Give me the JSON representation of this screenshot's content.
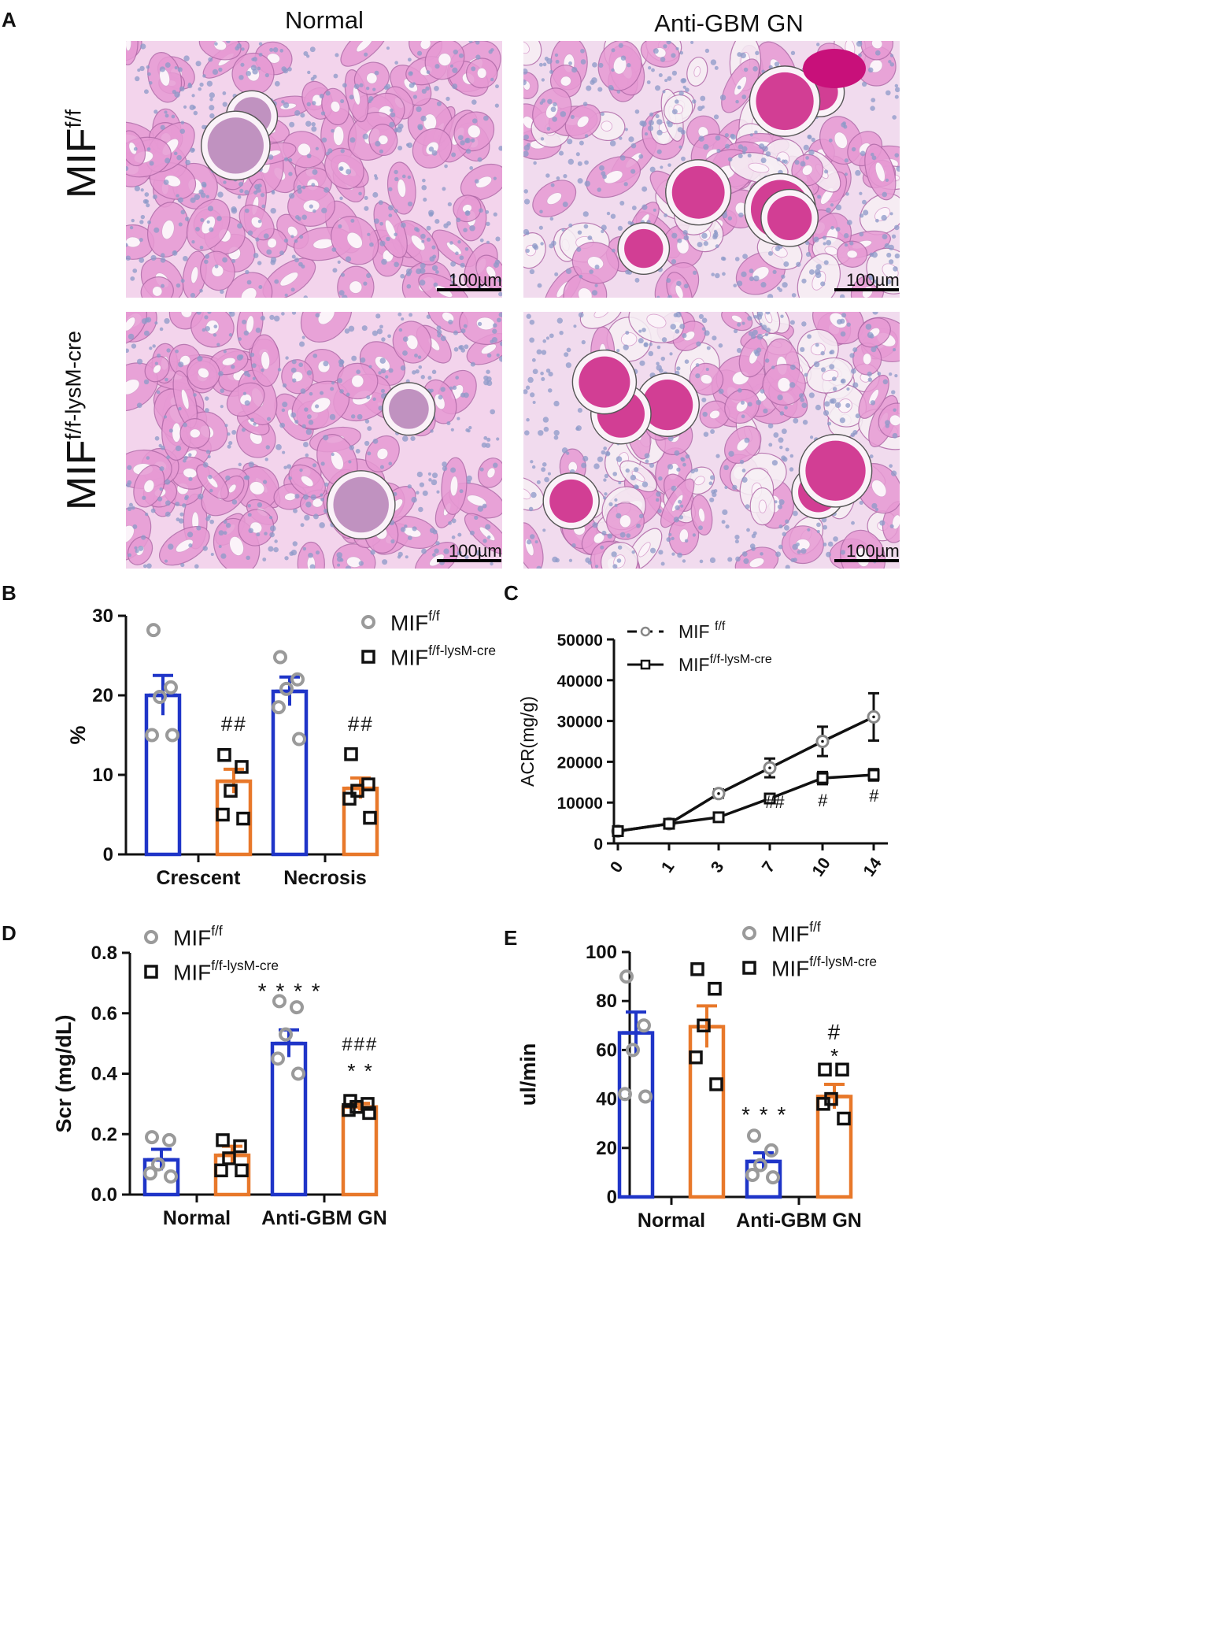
{
  "panels": {
    "A": {
      "letter": "A",
      "columns": [
        "Normal",
        "Anti-GBM GN"
      ],
      "rows": [
        {
          "base": "MIF",
          "sup": "f/f"
        },
        {
          "base": "MIF",
          "sup": "f/f-lysM-cre"
        }
      ],
      "scale_label": "100µm"
    },
    "B": {
      "letter": "B"
    },
    "C": {
      "letter": "C"
    },
    "D": {
      "letter": "D"
    },
    "E": {
      "letter": "E"
    }
  },
  "colors": {
    "ff_bar": "#1f35c8",
    "cre_bar": "#e8782a",
    "ff_marker": "#9a9a9a",
    "cre_marker": "#111111",
    "stain_bg": "#f3d4ec",
    "stain_pink": "#e79ad4",
    "stain_magenta": "#c8107a",
    "stain_nucleus": "#8c9ac8"
  },
  "chart_data": [
    {
      "id": "B",
      "type": "bar",
      "ylabel": "%",
      "ylim": [
        0,
        30
      ],
      "yticks": [
        "0",
        "10",
        "20",
        "30"
      ],
      "categories": [
        "Crescent",
        "Necrosis"
      ],
      "legend": [
        {
          "base": "MIF",
          "sup": "f/f",
          "marker": "circle"
        },
        {
          "base": "MIF",
          "sup": "f/f-lysM-cre",
          "marker": "square"
        }
      ],
      "series": [
        {
          "name": "MIF f/f",
          "values": [
            20.0,
            20.5
          ],
          "errors": [
            2.5,
            1.8
          ],
          "points": [
            [
              28.2,
              21.0,
              19.8,
              15.0,
              15.0
            ],
            [
              24.8,
              22.0,
              20.8,
              18.5,
              14.5
            ]
          ]
        },
        {
          "name": "MIF f/f-lysM-cre",
          "values": [
            9.2,
            8.3
          ],
          "errors": [
            1.5,
            1.3
          ],
          "points": [
            [
              12.5,
              11.0,
              8.0,
              5.0,
              4.5
            ],
            [
              12.6,
              8.8,
              8.0,
              7.0,
              4.6
            ]
          ]
        }
      ],
      "annotations": [
        {
          "category": 0,
          "series": 1,
          "text": "##"
        },
        {
          "category": 1,
          "series": 1,
          "text": "##"
        }
      ]
    },
    {
      "id": "C",
      "type": "line",
      "ylabel": "ACR(mg/g)",
      "ylim": [
        0,
        50000
      ],
      "yticks": [
        "0",
        "10000",
        "20000",
        "30000",
        "40000",
        "50000"
      ],
      "x": [
        "0",
        "1",
        "3",
        "7",
        "10",
        "14"
      ],
      "legend": [
        {
          "base": "MIF ",
          "sup": "f/f",
          "marker": "circle"
        },
        {
          "base": "MIF",
          "sup": "f/f-lysM-cre",
          "marker": "square"
        }
      ],
      "series": [
        {
          "name": "MIF f/f",
          "values": [
            3000,
            4800,
            12200,
            18500,
            25000,
            31000
          ],
          "errors": [
            400,
            500,
            1000,
            2300,
            3600,
            5800
          ]
        },
        {
          "name": "MIF f/f-lysM-cre",
          "values": [
            3000,
            4800,
            6400,
            11000,
            16000,
            16800
          ],
          "errors": [
            300,
            400,
            500,
            800,
            1500,
            1400
          ]
        }
      ],
      "annotations": [
        {
          "index": 3,
          "text": "##"
        },
        {
          "index": 4,
          "text": "#"
        },
        {
          "index": 5,
          "text": "#"
        }
      ]
    },
    {
      "id": "D",
      "type": "bar",
      "ylabel": "Scr (mg/dL)",
      "ylim": [
        0,
        0.8
      ],
      "yticks": [
        "0.0",
        "0.2",
        "0.4",
        "0.6",
        "0.8"
      ],
      "categories": [
        "Normal",
        "Anti-GBM GN"
      ],
      "legend": [
        {
          "base": "MIF",
          "sup": "f/f",
          "marker": "circle"
        },
        {
          "base": "MIF",
          "sup": "f/f-lysM-cre",
          "marker": "square"
        }
      ],
      "series": [
        {
          "name": "MIF f/f",
          "values": [
            0.115,
            0.5
          ],
          "errors": [
            0.035,
            0.045
          ],
          "points": [
            [
              0.19,
              0.18,
              0.1,
              0.07,
              0.06
            ],
            [
              0.64,
              0.62,
              0.53,
              0.45,
              0.4
            ]
          ]
        },
        {
          "name": "MIF f/f-lysM-cre",
          "values": [
            0.13,
            0.29
          ],
          "errors": [
            0.03,
            0.012
          ],
          "points": [
            [
              0.18,
              0.16,
              0.12,
              0.08,
              0.08
            ],
            [
              0.31,
              0.3,
              0.29,
              0.28,
              0.27
            ]
          ]
        }
      ],
      "annotations": [
        {
          "category": 1,
          "series": 0,
          "text": "* * * *"
        },
        {
          "category": 1,
          "series": 1,
          "text": "###"
        },
        {
          "category": 1,
          "series": 1,
          "text": "* *"
        }
      ]
    },
    {
      "id": "E",
      "type": "bar",
      "ylabel": "ul/min",
      "ylim": [
        0,
        100
      ],
      "yticks": [
        "0",
        "20",
        "40",
        "60",
        "80",
        "100"
      ],
      "categories": [
        "Normal",
        "Anti-GBM GN"
      ],
      "legend": [
        {
          "base": "MIF",
          "sup": "f/f",
          "marker": "circle"
        },
        {
          "base": "MIF",
          "sup": "f/f-lysM-cre",
          "marker": "square"
        }
      ],
      "series": [
        {
          "name": "MIF f/f",
          "values": [
            67,
            14.5
          ],
          "errors": [
            8.5,
            3.5
          ],
          "points": [
            [
              90,
              70,
              60,
              42,
              41
            ],
            [
              25,
              19,
              13,
              9,
              8
            ]
          ]
        },
        {
          "name": "MIF f/f-lysM-cre",
          "values": [
            69.5,
            41
          ],
          "errors": [
            8.5,
            5
          ],
          "points": [
            [
              93,
              85,
              70,
              57,
              46
            ],
            [
              52,
              52,
              40,
              38,
              32
            ]
          ]
        }
      ],
      "annotations": [
        {
          "category": 1,
          "series": 0,
          "text": "* * *"
        },
        {
          "category": 1,
          "series": 1,
          "text": "#"
        },
        {
          "category": 1,
          "series": 1,
          "text": "*"
        }
      ]
    }
  ]
}
